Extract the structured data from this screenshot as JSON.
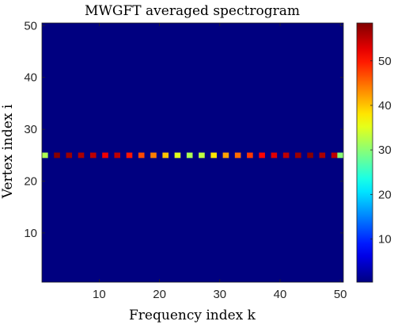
{
  "chart_data": {
    "type": "heatmap",
    "title": "MWGFT averaged spectrogram",
    "xlabel": "Frequency index k",
    "ylabel": "Vertex index i",
    "x_range": [
      1,
      50
    ],
    "y_range": [
      1,
      50
    ],
    "xticks": [
      10,
      20,
      30,
      40,
      50
    ],
    "yticks": [
      10,
      20,
      30,
      40,
      50
    ],
    "colormap": "jet",
    "colorbar": {
      "range": [
        0.3,
        58.5
      ],
      "ticks": [
        10,
        20,
        30,
        40,
        50
      ]
    },
    "background_value": 0.3,
    "grid": false,
    "active_row": {
      "vertex": 25,
      "k": [
        1,
        2,
        3,
        4,
        5,
        6,
        7,
        8,
        9,
        10,
        11,
        12,
        13,
        14,
        15,
        16,
        17,
        18,
        19,
        20,
        21,
        22,
        23,
        24,
        25,
        26,
        27,
        28,
        29,
        30,
        31,
        32,
        33,
        34,
        35,
        36,
        37,
        38,
        39,
        40,
        41,
        42,
        43,
        44,
        45,
        46,
        47,
        48,
        49,
        50
      ],
      "values": [
        32,
        0.5,
        58,
        0.5,
        57,
        0.5,
        56,
        0.5,
        55,
        0.5,
        52,
        0.5,
        55,
        0.5,
        50,
        0.5,
        47,
        0.5,
        44,
        0.5,
        40,
        0.5,
        35,
        0.5,
        32,
        0.5,
        33,
        0.5,
        38,
        0.5,
        42,
        0.5,
        45,
        0.5,
        48,
        0.5,
        51,
        0.5,
        53,
        0.5,
        55,
        0.5,
        57,
        0.5,
        58,
        0.5,
        56,
        0.5,
        55,
        30
      ]
    }
  }
}
